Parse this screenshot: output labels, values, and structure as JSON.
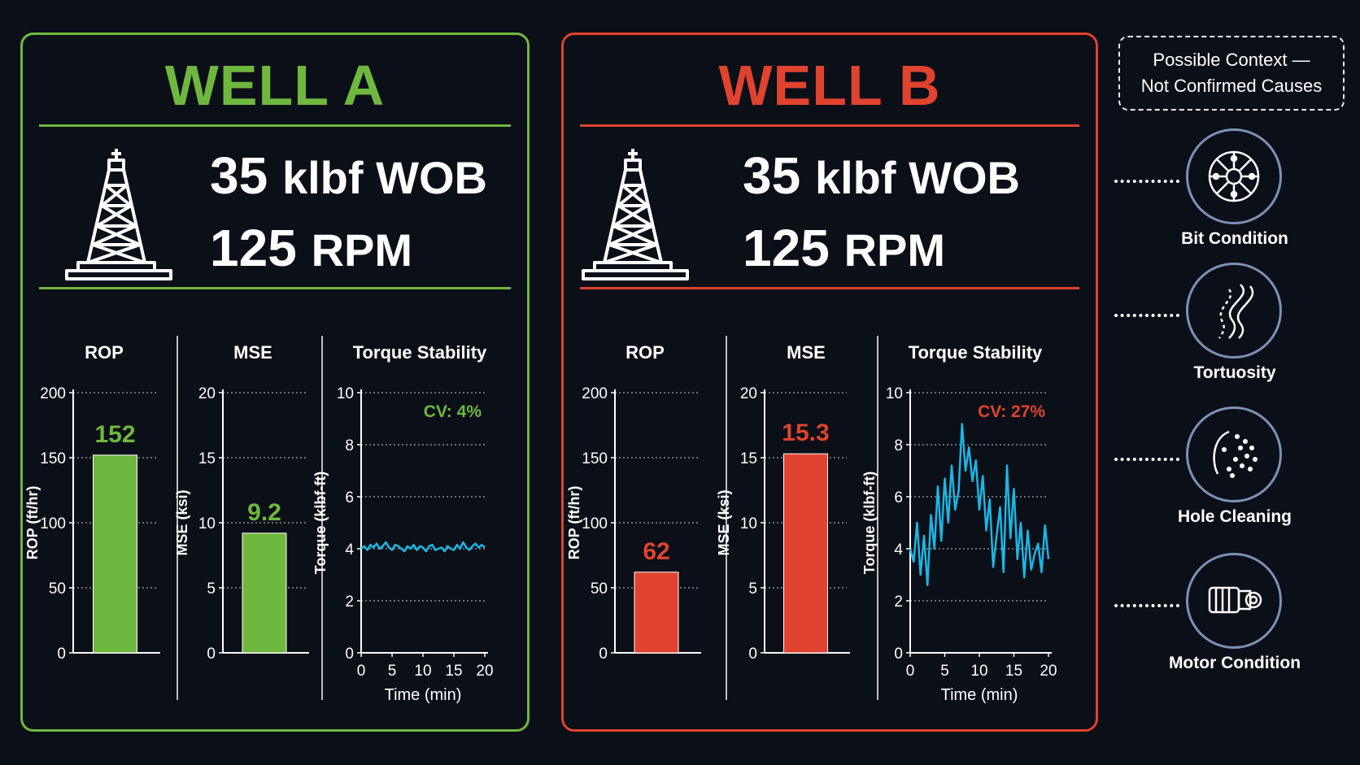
{
  "colors": {
    "good": "#6fb83f",
    "bad": "#e0432f",
    "trace": "#19b7e6",
    "background": "#0b0f17"
  },
  "wells": [
    {
      "title": "WELL A",
      "accent": "#6fb83f",
      "wob_value": "35",
      "wob_unit": "klbf WOB",
      "rpm_value": "125",
      "rpm_unit": "RPM",
      "rig_icon": "drilling-rig-icon"
    },
    {
      "title": "WELL B",
      "accent": "#e0432f",
      "wob_value": "35",
      "wob_unit": "klbf WOB",
      "rpm_value": "125",
      "rpm_unit": "RPM",
      "rig_icon": "drilling-rig-icon"
    }
  ],
  "context": {
    "line1": "Possible Context —",
    "line2": "Not Confirmed Causes",
    "causes": [
      {
        "label": "Bit Condition",
        "icon": "drill-bit-icon"
      },
      {
        "label": "Tortuosity",
        "icon": "wellbore-path-icon"
      },
      {
        "label": "Hole Cleaning",
        "icon": "cuttings-icon"
      },
      {
        "label": "Motor Condition",
        "icon": "mud-motor-icon"
      }
    ]
  },
  "chart_data": [
    {
      "type": "bar",
      "well": "WELL A",
      "title": "ROP",
      "ylabel": "ROP (ft/hr)",
      "ylim": [
        0,
        200
      ],
      "yticks": [
        0,
        50,
        100,
        150,
        200
      ],
      "values": [
        152
      ],
      "data_labels": [
        "152"
      ],
      "color": "#6fb83f",
      "grid": true
    },
    {
      "type": "bar",
      "well": "WELL A",
      "title": "MSE",
      "ylabel": "MSE (ksi)",
      "ylim": [
        0,
        20
      ],
      "yticks": [
        0,
        5,
        10,
        15,
        20
      ],
      "values": [
        9.2
      ],
      "data_labels": [
        "9.2"
      ],
      "color": "#6fb83f",
      "grid": true
    },
    {
      "type": "line",
      "well": "WELL A",
      "title": "Torque Stability",
      "ylabel": "Torque (klbf-ft)",
      "xlabel": "Time (min)",
      "xlim": [
        0,
        20
      ],
      "ylim": [
        0,
        10
      ],
      "xticks": [
        0,
        5,
        10,
        15,
        20
      ],
      "yticks": [
        0,
        2,
        4,
        6,
        8,
        10
      ],
      "annotation": "CV: 4%",
      "annotation_color": "#6fb83f",
      "grid": true,
      "x": [
        0,
        0.5,
        1,
        1.5,
        2,
        2.5,
        3,
        3.5,
        4,
        4.5,
        5,
        5.5,
        6,
        6.5,
        7,
        7.5,
        8,
        8.5,
        9,
        9.5,
        10,
        10.5,
        11,
        11.5,
        12,
        12.5,
        13,
        13.5,
        14,
        14.5,
        15,
        15.5,
        16,
        16.5,
        17,
        17.5,
        18,
        18.5,
        19,
        19.5,
        20
      ],
      "y": [
        4.0,
        4.1,
        3.95,
        4.15,
        4.05,
        4.2,
        4.0,
        4.1,
        4.25,
        4.05,
        3.95,
        4.15,
        4.1,
        4.0,
        3.9,
        4.1,
        4.0,
        4.15,
        3.95,
        4.1,
        4.05,
        3.9,
        4.1,
        4.15,
        3.95,
        4.0,
        4.05,
        3.9,
        4.1,
        4.0,
        3.95,
        4.15,
        4.0,
        4.25,
        4.05,
        3.95,
        4.1,
        4.2,
        4.05,
        4.15,
        4.05
      ]
    },
    {
      "type": "bar",
      "well": "WELL B",
      "title": "ROP",
      "ylabel": "ROP (ft/hr)",
      "ylim": [
        0,
        200
      ],
      "yticks": [
        0,
        50,
        100,
        150,
        200
      ],
      "values": [
        62
      ],
      "data_labels": [
        "62"
      ],
      "color": "#e0432f",
      "grid": true
    },
    {
      "type": "bar",
      "well": "WELL B",
      "title": "MSE",
      "ylabel": "MSE (ksi)",
      "ylim": [
        0,
        20
      ],
      "yticks": [
        0,
        5,
        10,
        15,
        20
      ],
      "values": [
        15.3
      ],
      "data_labels": [
        "15.3"
      ],
      "color": "#e0432f",
      "grid": true
    },
    {
      "type": "line",
      "well": "WELL B",
      "title": "Torque Stability",
      "ylabel": "Torque (klbf-ft)",
      "xlabel": "Time (min)",
      "xlim": [
        0,
        20
      ],
      "ylim": [
        0,
        10
      ],
      "xticks": [
        0,
        5,
        10,
        15,
        20
      ],
      "yticks": [
        0,
        2,
        4,
        6,
        8,
        10
      ],
      "annotation": "CV: 27%",
      "annotation_color": "#e0432f",
      "grid": true,
      "x": [
        0,
        0.5,
        1,
        1.5,
        2,
        2.5,
        3,
        3.5,
        4,
        4.5,
        5,
        5.5,
        6,
        6.5,
        7,
        7.5,
        8,
        8.5,
        9,
        9.5,
        10,
        10.5,
        11,
        11.5,
        12,
        12.5,
        13,
        13.5,
        14,
        14.5,
        15,
        15.5,
        16,
        16.5,
        17,
        17.5,
        18,
        18.5,
        19,
        19.5,
        20
      ],
      "y": [
        4.0,
        3.5,
        5.0,
        3.0,
        4.5,
        2.6,
        5.3,
        4.0,
        6.4,
        4.3,
        6.7,
        5.0,
        7.2,
        5.5,
        6.2,
        8.8,
        7.0,
        7.9,
        6.6,
        7.4,
        5.5,
        6.8,
        4.7,
        5.9,
        3.3,
        4.5,
        5.6,
        3.1,
        7.2,
        4.4,
        6.3,
        3.6,
        5.0,
        2.9,
        4.7,
        3.2,
        3.8,
        4.2,
        3.1,
        4.9,
        3.6
      ]
    }
  ]
}
